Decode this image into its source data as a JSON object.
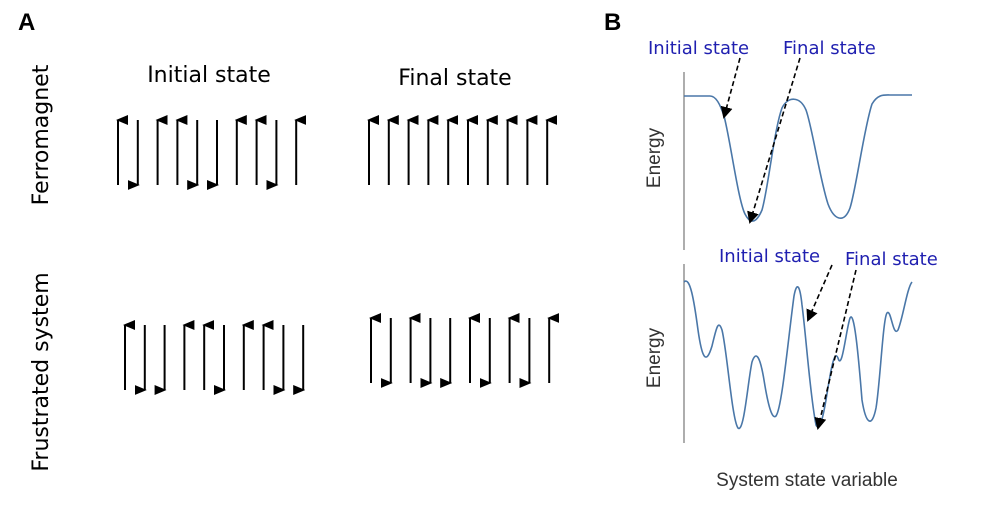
{
  "panel_a": {
    "letter": "A",
    "column_titles": {
      "initial": "Initial state",
      "final": "Final state"
    },
    "row_labels": {
      "ferromagnet": "Ferromagnet",
      "frustrated": "Frustrated system"
    },
    "spins": {
      "ferromagnet_initial": [
        "up",
        "down",
        "up",
        "up",
        "down",
        "down",
        "up",
        "up",
        "down",
        "up"
      ],
      "ferromagnet_final": [
        "up",
        "up",
        "up",
        "up",
        "up",
        "up",
        "up",
        "up",
        "up",
        "up"
      ],
      "frustrated_initial": [
        "up",
        "down",
        "down",
        "up",
        "up",
        "down",
        "up",
        "up",
        "down",
        "down"
      ],
      "frustrated_final": [
        "up",
        "down",
        "up",
        "down",
        "down",
        "up",
        "down",
        "up",
        "down",
        "up"
      ]
    }
  },
  "panel_b": {
    "letter": "B",
    "top": {
      "initial_label": "Initial state",
      "final_label": "Final state",
      "y_axis_label": "Energy"
    },
    "bottom": {
      "initial_label": "Initial state",
      "final_label": "Final state",
      "y_axis_label": "Energy"
    },
    "x_axis_label": "System state variable",
    "curve_color": "#4a77a8",
    "label_color": "#1f1fb0"
  }
}
